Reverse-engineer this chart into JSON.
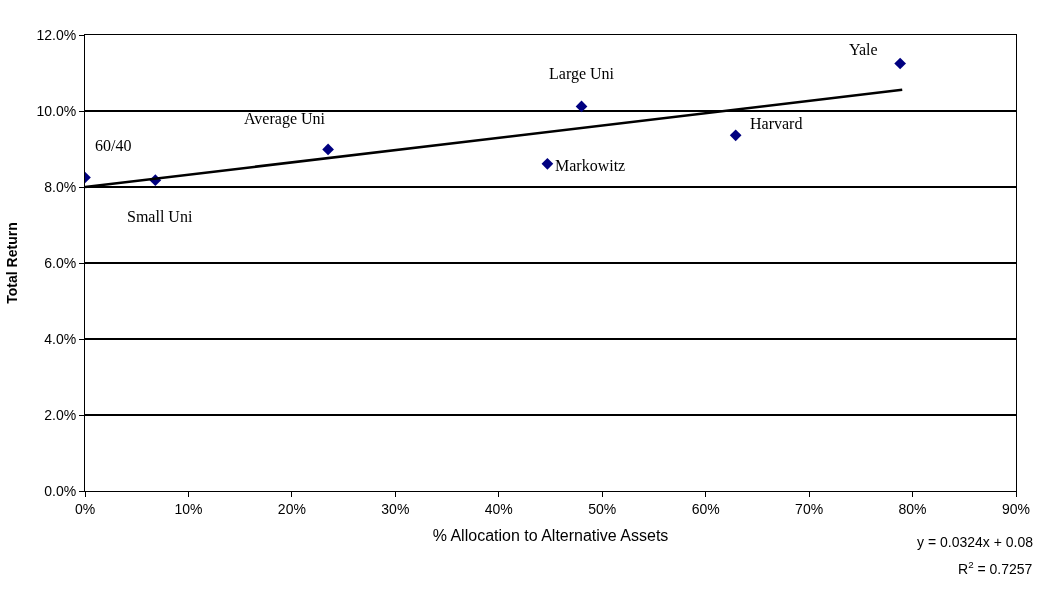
{
  "chart_data": {
    "type": "scatter",
    "xlabel": "% Allocation to Alternative Assets",
    "ylabel": "Total Return",
    "series": [
      {
        "color": "#000080",
        "marker": "diamond",
        "x": [
          0.0,
          0.068,
          0.235,
          0.447,
          0.48,
          0.629,
          0.788
        ],
        "values": [
          0.0825,
          0.0818,
          0.0899,
          0.0861,
          0.1012,
          0.0936,
          0.1125
        ]
      },
      {
        "type": "line",
        "color": "#000000",
        "line_style": "solid",
        "marker": "none",
        "x": [
          0.0,
          0.79
        ],
        "values": [
          0.08,
          0.1056
        ]
      }
    ],
    "annotations": [
      {
        "text": "60/40",
        "x": 0.0,
        "y": 0.0825
      },
      {
        "text": "Small Uni",
        "x": 0.068,
        "y": 0.0818
      },
      {
        "text": "Average Uni",
        "x": 0.235,
        "y": 0.0899
      },
      {
        "text": "Markowitz",
        "x": 0.447,
        "y": 0.0861
      },
      {
        "text": "Large Uni",
        "x": 0.48,
        "y": 0.1012
      },
      {
        "text": "Harvard",
        "x": 0.629,
        "y": 0.0936
      },
      {
        "text": "Yale",
        "x": 0.788,
        "y": 0.1125
      },
      "y = 0.0324x + 0.08",
      "R$^{2}$ = 0.7257"
    ],
    "xlim": [
      0,
      0.9
    ],
    "xticks": [
      {
        "value": 0,
        "label": "0%"
      },
      {
        "value": 0.1,
        "label": "10%"
      },
      {
        "value": 0.2,
        "label": "20%"
      },
      {
        "value": 0.3,
        "label": "30%"
      },
      {
        "value": 0.4,
        "label": "40%"
      },
      {
        "value": 0.5,
        "label": "50%"
      },
      {
        "value": 0.6,
        "label": "60%"
      },
      {
        "value": 0.7,
        "label": "70%"
      },
      {
        "value": 0.8,
        "label": "80%"
      },
      {
        "value": 0.9,
        "label": "90%"
      }
    ],
    "ylim": [
      0,
      0.12
    ],
    "yticks": [
      {
        "value": 0,
        "label": "0.0%"
      },
      {
        "value": 0.02,
        "label": "2.0%"
      },
      {
        "value": 0.04,
        "label": "4.0%"
      },
      {
        "value": 0.06,
        "label": "6.0%"
      },
      {
        "value": 0.08,
        "label": "8.0%"
      },
      {
        "value": 0.1,
        "label": "10.0%"
      },
      {
        "value": 0.12,
        "label": "12.0%"
      }
    ],
    "grid": "y"
  }
}
